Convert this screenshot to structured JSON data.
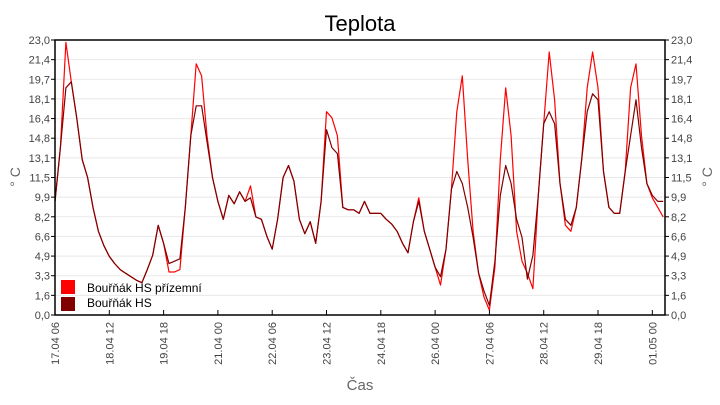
{
  "chart_data": {
    "type": "line",
    "title": "Teplota",
    "xlabel": "Čas",
    "ylabel": "° C",
    "ylabel_right": "° C",
    "ylim": [
      0,
      23
    ],
    "yticks": [
      "0,0",
      "1,6",
      "3,3",
      "4,9",
      "6,6",
      "8,2",
      "9,9",
      "11,5",
      "13,1",
      "14,8",
      "16,4",
      "18,1",
      "19,7",
      "21,4",
      "23,0"
    ],
    "xticks": [
      "17.04 06",
      "18.04 12",
      "19.04 18",
      "21.04 00",
      "22.04 06",
      "23.04 12",
      "24.04 18",
      "26.04 00",
      "27.04 06",
      "28.04 12",
      "29.04 18",
      "01.05 00"
    ],
    "xlim": [
      "17.04 06",
      "01.05 07"
    ],
    "grid": true,
    "legend_placement": "bottom-left",
    "x": [
      "17.04 06",
      "17.04 09",
      "17.04 12",
      "17.04 15",
      "17.04 18",
      "17.04 21",
      "18.04 00",
      "18.04 03",
      "18.04 06",
      "18.04 09",
      "18.04 12",
      "18.04 15",
      "18.04 18",
      "18.04 21",
      "19.04 00",
      "19.04 03",
      "19.04 06",
      "19.04 09",
      "19.04 12",
      "19.04 15",
      "19.04 18",
      "19.04 21",
      "20.04 00",
      "20.04 03",
      "20.04 06",
      "20.04 09",
      "20.04 12",
      "20.04 15",
      "20.04 18",
      "20.04 21",
      "21.04 00",
      "21.04 03",
      "21.04 06",
      "21.04 09",
      "21.04 12",
      "21.04 15",
      "21.04 18",
      "21.04 21",
      "22.04 00",
      "22.04 03",
      "22.04 06",
      "22.04 09",
      "22.04 12",
      "22.04 15",
      "22.04 18",
      "22.04 21",
      "23.04 00",
      "23.04 03",
      "23.04 06",
      "23.04 09",
      "23.04 12",
      "23.04 15",
      "23.04 18",
      "23.04 21",
      "24.04 00",
      "24.04 03",
      "24.04 06",
      "24.04 09",
      "24.04 12",
      "24.04 15",
      "24.04 18",
      "24.04 21",
      "25.04 00",
      "25.04 03",
      "25.04 06",
      "25.04 09",
      "25.04 12",
      "25.04 15",
      "25.04 18",
      "25.04 21",
      "26.04 00",
      "26.04 03",
      "26.04 06",
      "26.04 09",
      "26.04 12",
      "26.04 15",
      "26.04 18",
      "26.04 21",
      "27.04 00",
      "27.04 03",
      "27.04 06",
      "27.04 09",
      "27.04 12",
      "27.04 15",
      "27.04 18",
      "27.04 21",
      "28.04 00",
      "28.04 03",
      "28.04 06",
      "28.04 09",
      "28.04 12",
      "28.04 15",
      "28.04 18",
      "28.04 21",
      "29.04 00",
      "29.04 03",
      "29.04 06",
      "29.04 09",
      "29.04 12",
      "29.04 15",
      "29.04 18",
      "29.04 21",
      "30.04 00",
      "30.04 03",
      "30.04 06",
      "30.04 09",
      "30.04 12",
      "30.04 15",
      "30.04 18",
      "30.04 21",
      "01.05 00",
      "01.05 03",
      "01.05 06"
    ],
    "series": [
      {
        "name": "Bouřňák HS přízemní",
        "color": "#ff0000",
        "values": [
          9.5,
          14,
          22.8,
          19.5,
          16.5,
          13,
          11.5,
          9,
          7,
          5.8,
          4.9,
          4.3,
          3.8,
          3.5,
          3.2,
          2.9,
          2.7,
          3.8,
          5,
          7.5,
          6,
          3.6,
          3.6,
          3.8,
          9,
          15,
          21,
          20,
          15,
          11.5,
          9.5,
          8,
          10,
          9.3,
          10.3,
          9.5,
          10.8,
          8.2,
          8,
          6.6,
          5.5,
          8,
          11.5,
          12.5,
          11.2,
          8,
          6.8,
          7.8,
          6,
          9.5,
          17,
          16.5,
          15,
          9,
          8.8,
          8.8,
          8.5,
          9.5,
          8.5,
          8.5,
          8.5,
          8,
          7.6,
          7,
          6,
          5.2,
          7.8,
          9.8,
          7,
          5.5,
          4,
          2.5,
          5.5,
          10.5,
          17,
          20,
          13,
          7,
          3.5,
          1.5,
          0.4,
          4,
          13,
          19,
          15,
          7,
          4.5,
          3.5,
          2.2,
          10,
          16,
          22,
          18,
          11,
          7.5,
          7,
          9,
          13,
          19,
          22,
          19,
          12,
          9,
          8.5,
          8.5,
          12,
          19,
          21,
          15,
          11,
          9.8,
          9,
          8.2
        ]
      },
      {
        "name": "Bouřňák HS",
        "color": "#800000",
        "values": [
          9.5,
          14,
          19,
          19.5,
          16.5,
          13,
          11.5,
          9,
          7,
          5.8,
          4.9,
          4.3,
          3.8,
          3.5,
          3.2,
          2.9,
          2.7,
          3.8,
          5,
          7.5,
          6,
          4.3,
          4.5,
          4.7,
          9,
          15,
          17.5,
          17.5,
          14.5,
          11.5,
          9.5,
          8,
          10,
          9.3,
          10.3,
          9.5,
          9.8,
          8.2,
          8,
          6.6,
          5.5,
          8,
          11.5,
          12.5,
          11.2,
          8,
          6.8,
          7.8,
          6,
          9.5,
          15.5,
          14,
          13.5,
          9,
          8.8,
          8.8,
          8.5,
          9.5,
          8.5,
          8.5,
          8.5,
          8,
          7.6,
          7,
          6,
          5.2,
          7.8,
          9.5,
          7,
          5.5,
          4,
          3.2,
          5.5,
          10.5,
          12,
          11,
          9,
          6.5,
          3.5,
          2,
          0.8,
          4.5,
          10,
          12.5,
          11,
          8,
          6.5,
          3,
          5,
          10,
          16,
          17,
          16,
          11,
          8,
          7.5,
          9,
          13,
          17,
          18.5,
          18,
          12,
          9,
          8.5,
          8.5,
          12,
          15,
          18,
          14,
          11,
          10,
          9.5,
          9.5
        ]
      }
    ]
  }
}
